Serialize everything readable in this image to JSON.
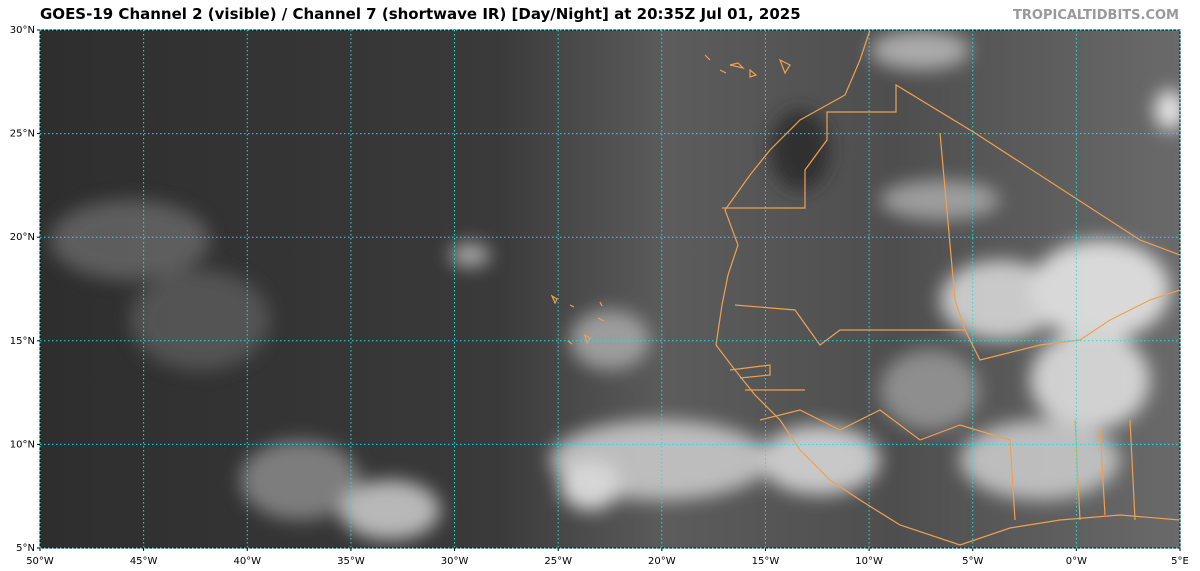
{
  "title": "GOES-19 Channel 2 (visible) / Channel 7 (shortwave IR) [Day/Night] at 20:35Z Jul 01, 2025",
  "watermark": "TROPICALTIDBITS.COM",
  "map": {
    "lon_range": [
      -50,
      5
    ],
    "lat_range": [
      5,
      30
    ],
    "lon_lines": [
      {
        "value": -50,
        "label": "50°W"
      },
      {
        "value": -45,
        "label": "45°W"
      },
      {
        "value": -40,
        "label": "40°W"
      },
      {
        "value": -35,
        "label": "35°W"
      },
      {
        "value": -30,
        "label": "30°W"
      },
      {
        "value": -25,
        "label": "25°W"
      },
      {
        "value": -20,
        "label": "20°W"
      },
      {
        "value": -15,
        "label": "15°W"
      },
      {
        "value": -10,
        "label": "10°W"
      },
      {
        "value": -5,
        "label": "5°W"
      },
      {
        "value": 0,
        "label": "0°W"
      },
      {
        "value": 5,
        "label": "5°E"
      }
    ],
    "lat_lines": [
      {
        "value": 5,
        "label": "5°N"
      },
      {
        "value": 10,
        "label": "10°N"
      },
      {
        "value": 15,
        "label": "15°N"
      },
      {
        "value": 20,
        "label": "20°N"
      },
      {
        "value": 25,
        "label": "25°N"
      },
      {
        "value": 30,
        "label": "30°N"
      }
    ]
  }
}
